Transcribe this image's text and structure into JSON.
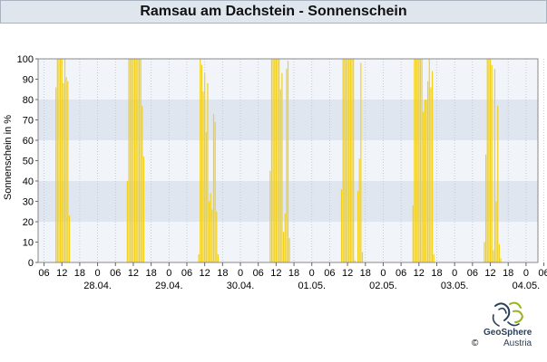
{
  "header": {
    "title": "Ramsau am Dachstein - Sonnenschein"
  },
  "footer": {
    "brand_name": "GeoSphere",
    "brand_sub": "Austria",
    "copyright": "©"
  },
  "chart_data": {
    "type": "bar",
    "title": "Ramsau am Dachstein - Sonnenschein",
    "ylabel": "Sonnenschein in %",
    "xlabel": "",
    "ylim": [
      0,
      100
    ],
    "yticks": [
      0,
      10,
      20,
      30,
      40,
      50,
      60,
      70,
      80,
      90,
      100
    ],
    "grid": true,
    "bar_color": "#f2cf1a",
    "band_colors": [
      "#f1f4f8",
      "#dfe6ef"
    ],
    "hour_ticks": [
      "06",
      "12",
      "18",
      "0",
      "06",
      "12",
      "18",
      "0",
      "06",
      "12",
      "18",
      "0",
      "06",
      "12",
      "18",
      "0",
      "06",
      "12",
      "18",
      "0",
      "06",
      "12",
      "18",
      "0",
      "06",
      "12",
      "18",
      "0",
      "06",
      "12",
      "18",
      "0",
      "06",
      "12"
    ],
    "date_labels": [
      "28.04.",
      "29.04.",
      "30.04.",
      "01.05.",
      "02.05.",
      "03.05.",
      "04.05."
    ],
    "start_hour": 4,
    "bar_interval_hours": 0.5,
    "series": [
      {
        "values": [
          0,
          0,
          0,
          0,
          86,
          100,
          100,
          100,
          100,
          88,
          100,
          91,
          89,
          23,
          0,
          0,
          0,
          0,
          0,
          0,
          0,
          0,
          0,
          0,
          0,
          0,
          0,
          0,
          0,
          0,
          0,
          0,
          0,
          0,
          0,
          0,
          0,
          0,
          0,
          0,
          0,
          0,
          0,
          0,
          0,
          0,
          0,
          0,
          0,
          0,
          0,
          0,
          40,
          100,
          100,
          100,
          100,
          100,
          100,
          100,
          100,
          100,
          77,
          52,
          0,
          0,
          0,
          0,
          0,
          0,
          0,
          0,
          0,
          0,
          0,
          0,
          0,
          0,
          0,
          0,
          0,
          0,
          0,
          0,
          0,
          0,
          0,
          0,
          0,
          0,
          0,
          0,
          0,
          0,
          0,
          0,
          0,
          0,
          0,
          0,
          4,
          100,
          97,
          84,
          93,
          64,
          88,
          30,
          34,
          26,
          73,
          69,
          25,
          4,
          0,
          0,
          0,
          0,
          0,
          0,
          0,
          0,
          0,
          0,
          0,
          0,
          0,
          0,
          0,
          0,
          0,
          0,
          0,
          0,
          0,
          0,
          0,
          0,
          0,
          0,
          0,
          0,
          0,
          0,
          0,
          0,
          0,
          0,
          45,
          100,
          100,
          100,
          100,
          100,
          100,
          85,
          93,
          15,
          24,
          95,
          99,
          12,
          0,
          0,
          0,
          0,
          0,
          0,
          0,
          0,
          0,
          0,
          0,
          0,
          0,
          0,
          0,
          0,
          0,
          0,
          0,
          0,
          0,
          0,
          0,
          0,
          0,
          0,
          0,
          0,
          0,
          0,
          0,
          0,
          0,
          0,
          36,
          100,
          100,
          100,
          100,
          100,
          100,
          100,
          100,
          1,
          0,
          35,
          51,
          98,
          5,
          0,
          0,
          0,
          0,
          0,
          0,
          0,
          0,
          0,
          0,
          0,
          0,
          0,
          0,
          0,
          0,
          0,
          0,
          0,
          0,
          0,
          0,
          0,
          0,
          0,
          0,
          0,
          0,
          0,
          0,
          0,
          0,
          0,
          28,
          100,
          100,
          100,
          100,
          100,
          100,
          74,
          80,
          80,
          89,
          100,
          86,
          94,
          4,
          0,
          0,
          0,
          0,
          0,
          0,
          0,
          0,
          0,
          0,
          0,
          0,
          0,
          0,
          0,
          0,
          0,
          0,
          0,
          0,
          0,
          0,
          0,
          0,
          0,
          0,
          0,
          0,
          0,
          0,
          0,
          0,
          0,
          10,
          53,
          100,
          100,
          100,
          97,
          6,
          95,
          30,
          77,
          9,
          2,
          0,
          0,
          0,
          0,
          0,
          0,
          0,
          0,
          0,
          0,
          0,
          0,
          0,
          0,
          0,
          0,
          0,
          0,
          0,
          0,
          0,
          0,
          0,
          0,
          0,
          0,
          0,
          0,
          0,
          0,
          0,
          0,
          0,
          0,
          0,
          0,
          10,
          2
        ]
      }
    ]
  }
}
